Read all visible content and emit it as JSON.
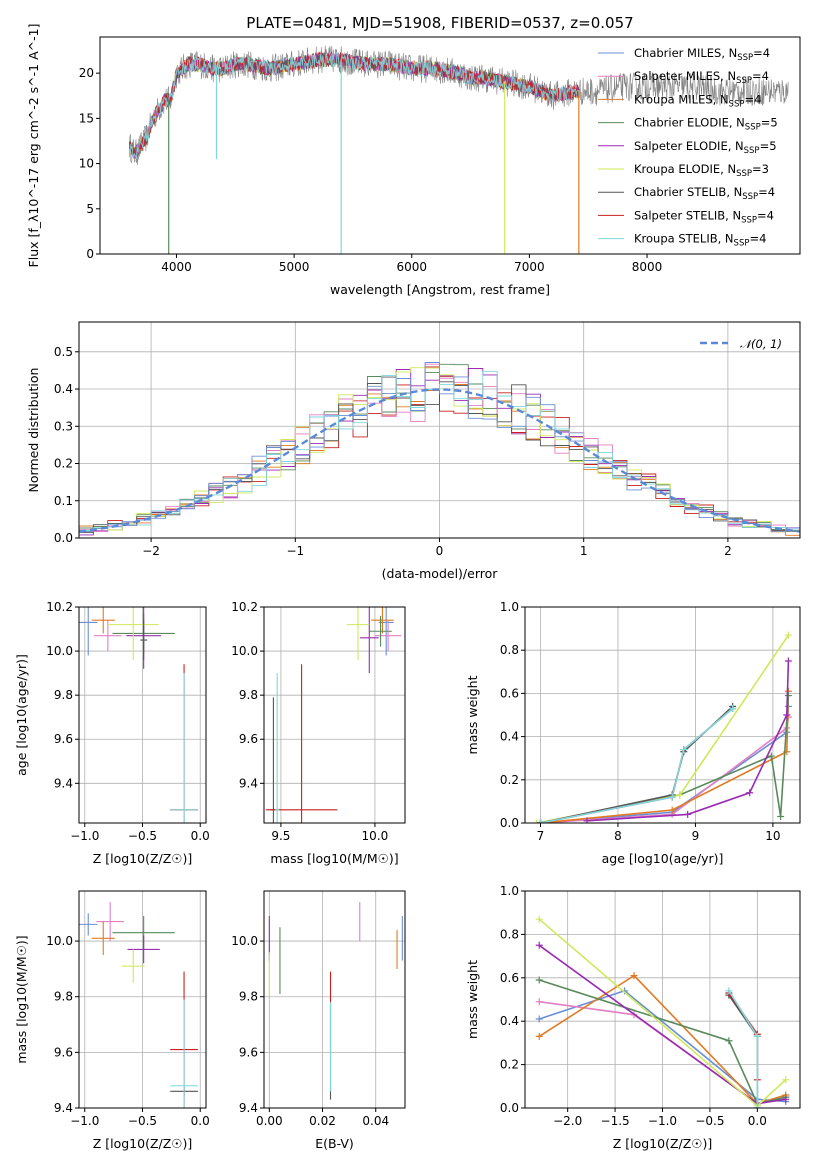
{
  "colors": {
    "series": [
      "#6b8fd6",
      "#e37fc3",
      "#e07b24",
      "#5a8a5c",
      "#9a2bb2",
      "#cfe85a",
      "#555555",
      "#c8201e",
      "#7fd7dc"
    ],
    "gray": "#808080",
    "gauss": "#5a8ad6"
  },
  "chart_data": [
    {
      "type": "line",
      "title": "PLATE=0481, MJD=51908, FIBERID=0537, z=0.057",
      "xlabel": "wavelength [Angstrom, rest frame]",
      "ylabel": "Flux [f_λ10^-17 erg cm^-2 s^-1 A^-1]",
      "xlim": [
        3350,
        9300
      ],
      "ylim": [
        0,
        24
      ],
      "xticks": [
        "4000",
        "5000",
        "6000",
        "7000",
        "8000"
      ],
      "yticks": [
        "0",
        "5",
        "10",
        "15",
        "20"
      ],
      "xtick_values": [
        4000,
        5000,
        6000,
        7000,
        8000
      ],
      "ytick_values": [
        0,
        5,
        10,
        15,
        20
      ],
      "grid": false,
      "legend_position": "top-right",
      "spectrum_envelope": {
        "x": [
          3600,
          3650,
          3700,
          3750,
          3800,
          3850,
          3900,
          3950,
          4000,
          4100,
          4200,
          4300,
          4400,
          4500,
          4600,
          4800,
          5000,
          5200,
          5400,
          5600,
          5800,
          6000,
          6200,
          6400,
          6500,
          6600,
          6800,
          7000,
          7200,
          7400,
          7600,
          7800,
          8000,
          8200,
          8400,
          8600,
          8800,
          9000,
          9200
        ],
        "y": [
          12,
          11,
          12,
          13,
          15,
          16,
          17,
          17,
          20,
          21,
          21,
          20.5,
          20.5,
          21,
          21,
          20.5,
          21,
          21.5,
          21.5,
          21,
          21,
          20.5,
          20.5,
          20,
          19.5,
          19.5,
          19,
          18.5,
          17.5,
          18,
          18,
          18.5,
          18.5,
          18.5,
          18.5,
          18,
          18,
          18,
          18
        ]
      },
      "spikes": [
        {
          "x": 3934,
          "y": 0
        },
        {
          "x": 5400,
          "y": 0
        },
        {
          "x": 6790,
          "y": 0
        },
        {
          "x": 7420,
          "y": 0
        },
        {
          "x": 4340,
          "y": 10.5
        }
      ],
      "legend": [
        {
          "name": "Chabrier MILES, N",
          "sub": "SSP",
          "n": "=4"
        },
        {
          "name": "Salpeter MILES, N",
          "sub": "SSP",
          "n": "=4"
        },
        {
          "name": "Kroupa MILES, N",
          "sub": "SSP",
          "n": "=4"
        },
        {
          "name": "Chabrier ELODIE, N",
          "sub": "SSP",
          "n": "=5"
        },
        {
          "name": "Salpeter ELODIE, N",
          "sub": "SSP",
          "n": "=5"
        },
        {
          "name": "Kroupa ELODIE, N",
          "sub": "SSP",
          "n": "=3"
        },
        {
          "name": "Chabrier STELIB, N",
          "sub": "SSP",
          "n": "=4"
        },
        {
          "name": "Salpeter STELIB, N",
          "sub": "SSP",
          "n": "=4"
        },
        {
          "name": "Kroupa STELIB, N",
          "sub": "SSP",
          "n": "=4"
        }
      ]
    },
    {
      "type": "histogram",
      "xlabel": "(data-model)/error",
      "ylabel": "Normed distribution",
      "xlim": [
        -2.5,
        2.5
      ],
      "ylim": [
        0,
        0.58
      ],
      "xticks": [
        "−2",
        "−1",
        "0",
        "1",
        "2"
      ],
      "yticks": [
        "0.0",
        "0.1",
        "0.2",
        "0.3",
        "0.4",
        "0.5"
      ],
      "xtick_values": [
        -2,
        -1,
        0,
        1,
        2
      ],
      "ytick_values": [
        0,
        0.1,
        0.2,
        0.3,
        0.4,
        0.5
      ],
      "grid": true,
      "legend_position": "top-right",
      "gaussian_label": "𝒩(0, 1)",
      "bin_width": 0.1
    },
    {
      "type": "scatter",
      "xlabel": "Z [log10(Z/Z☉)]",
      "ylabel": "age [log10(age/yr)]",
      "xlim": [
        -1.05,
        0.05
      ],
      "ylim": [
        9.22,
        10.2
      ],
      "xticks": [
        "−1.0",
        "−0.5",
        "0.0"
      ],
      "yticks": [
        "9.4",
        "9.6",
        "9.8",
        "10.0",
        "10.2"
      ],
      "xtick_values": [
        -1.0,
        -0.5,
        0.0
      ],
      "ytick_values": [
        9.4,
        9.6,
        9.8,
        10.0,
        10.2
      ],
      "grid": true,
      "points": [
        {
          "x": -0.97,
          "y": 10.13,
          "xerr": 0.08,
          "yerr": 0.15,
          "c": 0
        },
        {
          "x": -0.8,
          "y": 10.07,
          "xerr": 0.12,
          "yerr": 0.07,
          "c": 1
        },
        {
          "x": -0.84,
          "y": 10.14,
          "xerr": 0.1,
          "yerr": 0.06,
          "c": 2
        },
        {
          "x": -0.49,
          "y": 10.08,
          "xerr": 0.27,
          "yerr": 0.09,
          "c": 3
        },
        {
          "x": -0.49,
          "y": 10.07,
          "xerr": 0.15,
          "yerr": 0.15,
          "c": 4
        },
        {
          "x": -0.58,
          "y": 10.12,
          "xerr": 0.22,
          "yerr": 0.16,
          "c": 5
        },
        {
          "x": -0.49,
          "y": 10.05,
          "xerr": 0.03,
          "yerr": 0.09,
          "c": 6
        },
        {
          "x": -0.14,
          "y": 9.28,
          "xerr": 0.12,
          "yerr": 0.66,
          "c": 7
        },
        {
          "x": -0.14,
          "y": 9.28,
          "xerr": 0.12,
          "yerr": 0.62,
          "c": 8
        }
      ]
    },
    {
      "type": "scatter",
      "xlabel": "mass [log10(M/M☉)]",
      "ylabel": "",
      "xlim": [
        9.41,
        10.16
      ],
      "ylim": [
        9.22,
        10.2
      ],
      "xticks": [
        "9.5",
        "10.0"
      ],
      "yticks": [
        "9.4",
        "9.6",
        "9.8",
        "10.0",
        "10.2"
      ],
      "xtick_values": [
        9.5,
        10.0
      ],
      "ytick_values": [
        9.4,
        9.6,
        9.8,
        10.0,
        10.2
      ],
      "grid": true,
      "points": [
        {
          "x": 10.06,
          "y": 10.13,
          "xerr": 0.04,
          "yerr": 0.15,
          "c": 0
        },
        {
          "x": 10.07,
          "y": 10.07,
          "xerr": 0.07,
          "yerr": 0.07,
          "c": 1
        },
        {
          "x": 10.04,
          "y": 10.14,
          "xerr": 0.06,
          "yerr": 0.06,
          "c": 2
        },
        {
          "x": 10.03,
          "y": 10.09,
          "xerr": 0.06,
          "yerr": 0.07,
          "c": 3
        },
        {
          "x": 9.97,
          "y": 10.06,
          "xerr": 0.05,
          "yerr": 0.16,
          "c": 4
        },
        {
          "x": 9.91,
          "y": 10.12,
          "xerr": 0.06,
          "yerr": 0.16,
          "c": 5
        },
        {
          "x": 9.46,
          "y": 9.28,
          "xerr": 0.02,
          "yerr": 0.51,
          "c": 6
        },
        {
          "x": 9.61,
          "y": 9.28,
          "xerr": 0.19,
          "yerr": 0.66,
          "c": 7
        },
        {
          "x": 9.48,
          "y": 9.28,
          "xerr": 0.01,
          "yerr": 0.62,
          "c": 8
        }
      ]
    },
    {
      "type": "line",
      "xlabel": "age [log10(age/yr)]",
      "ylabel": "mass weight",
      "xlim": [
        6.8,
        10.35
      ],
      "ylim": [
        0,
        1
      ],
      "xticks": [
        "7",
        "8",
        "9",
        "10"
      ],
      "yticks": [
        "0.0",
        "0.2",
        "0.4",
        "0.6",
        "0.8",
        "1.0"
      ],
      "xtick_values": [
        7,
        8,
        9,
        10
      ],
      "ytick_values": [
        0,
        0.2,
        0.4,
        0.6,
        0.8,
        1.0
      ],
      "grid": true,
      "series": [
        {
          "c": 0,
          "x": [
            7.0,
            8.7,
            10.18,
            10.2
          ],
          "y": [
            0.0,
            0.05,
            0.42,
            0.54
          ]
        },
        {
          "c": 1,
          "x": [
            7.0,
            8.7,
            10.18,
            10.2
          ],
          "y": [
            0.0,
            0.04,
            0.44,
            0.49
          ]
        },
        {
          "c": 2,
          "x": [
            7.0,
            8.7,
            10.18,
            10.2
          ],
          "y": [
            0.0,
            0.06,
            0.33,
            0.61
          ]
        },
        {
          "c": 3,
          "x": [
            7.0,
            8.8,
            9.98,
            10.1,
            10.2
          ],
          "y": [
            0.0,
            0.13,
            0.31,
            0.03,
            0.59
          ]
        },
        {
          "c": 4,
          "x": [
            7.6,
            8.9,
            9.7,
            10.18,
            10.2
          ],
          "y": [
            0.01,
            0.04,
            0.14,
            0.5,
            0.75
          ]
        },
        {
          "c": 5,
          "x": [
            6.95,
            8.8,
            10.2
          ],
          "y": [
            0.0,
            0.13,
            0.87
          ]
        },
        {
          "c": 6,
          "x": [
            7.0,
            8.7,
            8.85,
            9.48
          ],
          "y": [
            0.0,
            0.13,
            0.33,
            0.54
          ]
        },
        {
          "c": 7,
          "x": [
            7.0,
            8.7,
            8.85,
            9.48
          ],
          "y": [
            0.0,
            0.12,
            0.34,
            0.53
          ]
        },
        {
          "c": 8,
          "x": [
            7.0,
            8.7,
            8.85,
            9.48
          ],
          "y": [
            0.0,
            0.12,
            0.34,
            0.53
          ]
        }
      ]
    },
    {
      "type": "scatter",
      "xlabel": "Z [log10(Z/Z☉)]",
      "ylabel": "mass [log10(M/M☉)]",
      "xlim": [
        -1.05,
        0.05
      ],
      "ylim": [
        9.4,
        10.18
      ],
      "xticks": [
        "−1.0",
        "−0.5",
        "0.0"
      ],
      "yticks": [
        "9.4",
        "9.6",
        "9.8",
        "10.0"
      ],
      "xtick_values": [
        -1.0,
        -0.5,
        0.0
      ],
      "ytick_values": [
        9.4,
        9.6,
        9.8,
        10.0
      ],
      "grid": true,
      "points": [
        {
          "x": -0.97,
          "y": 10.06,
          "xerr": 0.08,
          "yerr": 0.04,
          "c": 0
        },
        {
          "x": -0.78,
          "y": 10.07,
          "xerr": 0.12,
          "yerr": 0.07,
          "c": 1
        },
        {
          "x": -0.84,
          "y": 10.01,
          "xerr": 0.1,
          "yerr": 0.06,
          "c": 2
        },
        {
          "x": -0.49,
          "y": 10.03,
          "xerr": 0.27,
          "yerr": 0.06,
          "c": 3
        },
        {
          "x": -0.49,
          "y": 9.97,
          "xerr": 0.14,
          "yerr": 0.05,
          "c": 4
        },
        {
          "x": -0.58,
          "y": 9.91,
          "xerr": 0.1,
          "yerr": 0.06,
          "c": 5
        },
        {
          "x": -0.14,
          "y": 9.46,
          "xerr": 0.12,
          "yerr": 0.02,
          "c": 6
        },
        {
          "x": -0.14,
          "y": 9.61,
          "xerr": 0.12,
          "yerr": 0.28,
          "c": 7
        },
        {
          "x": -0.14,
          "y": 9.48,
          "xerr": 0.12,
          "yerr": 0.31,
          "c": 8
        }
      ]
    },
    {
      "type": "scatter",
      "xlabel": "E(B-V)",
      "ylabel": "",
      "xlim": [
        -0.002,
        0.051
      ],
      "ylim": [
        9.4,
        10.18
      ],
      "xticks": [
        "0.00",
        "0.02",
        "0.04"
      ],
      "yticks": [
        "9.4",
        "9.6",
        "9.8",
        "10.0"
      ],
      "xtick_values": [
        0.0,
        0.02,
        0.04
      ],
      "ytick_values": [
        9.4,
        9.6,
        9.8,
        10.0
      ],
      "grid": true,
      "points": [
        {
          "x": 0.05,
          "y": 10.01,
          "xerr": 0,
          "yerr": 0.08,
          "c": 0
        },
        {
          "x": 0.034,
          "y": 10.07,
          "xerr": 0,
          "yerr": 0.07,
          "c": 1
        },
        {
          "x": 0.048,
          "y": 9.97,
          "xerr": 0,
          "yerr": 0.07,
          "c": 2
        },
        {
          "x": 0.004,
          "y": 9.93,
          "xerr": 0,
          "yerr": 0.12,
          "c": 3
        },
        {
          "x": 0.0,
          "y": 10.01,
          "xerr": 0,
          "yerr": 0.08,
          "c": 4
        },
        {
          "x": 0.0,
          "y": 9.88,
          "xerr": 0,
          "yerr": 0.08,
          "c": 5
        },
        {
          "x": 0.023,
          "y": 9.6,
          "xerr": 0,
          "yerr": 0.17,
          "c": 6
        },
        {
          "x": 0.023,
          "y": 9.75,
          "xerr": 0,
          "yerr": 0.14,
          "c": 7
        },
        {
          "x": 0.023,
          "y": 9.62,
          "xerr": 0,
          "yerr": 0.16,
          "c": 8
        }
      ]
    },
    {
      "type": "line",
      "xlabel": "Z [log10(Z/Z☉)]",
      "ylabel": "mass weight",
      "xlim": [
        -2.45,
        0.45
      ],
      "ylim": [
        0,
        1
      ],
      "xticks": [
        "−2.0",
        "−1.5",
        "−1.0",
        "−0.5",
        "0.0"
      ],
      "yticks": [
        "0.0",
        "0.2",
        "0.4",
        "0.6",
        "0.8",
        "1.0"
      ],
      "xtick_values": [
        -2.0,
        -1.5,
        -1.0,
        -0.5,
        0.0
      ],
      "ytick_values": [
        0,
        0.2,
        0.4,
        0.6,
        0.8,
        1.0
      ],
      "grid": true,
      "series": [
        {
          "c": 0,
          "x": [
            -2.3,
            -1.4,
            0.0,
            0.3
          ],
          "y": [
            0.41,
            0.54,
            0.04,
            0.03
          ]
        },
        {
          "c": 1,
          "x": [
            -2.3,
            -1.3,
            0.0,
            0.3
          ],
          "y": [
            0.49,
            0.43,
            0.02,
            0.05
          ]
        },
        {
          "c": 2,
          "x": [
            -2.3,
            -1.3,
            0.0,
            0.3
          ],
          "y": [
            0.33,
            0.61,
            0.02,
            0.06
          ]
        },
        {
          "c": 3,
          "x": [
            -2.3,
            -0.3,
            0.0,
            0.3
          ],
          "y": [
            0.59,
            0.31,
            0.02,
            0.05
          ]
        },
        {
          "c": 4,
          "x": [
            -2.3,
            0.0,
            0.3
          ],
          "y": [
            0.75,
            0.02,
            0.04
          ]
        },
        {
          "c": 5,
          "x": [
            -2.3,
            0.0,
            0.3
          ],
          "y": [
            0.87,
            0.01,
            0.13
          ]
        },
        {
          "c": 6,
          "x": [
            -0.3,
            0.0,
            0.0
          ],
          "y": [
            0.52,
            0.33,
            0.0
          ]
        },
        {
          "c": 7,
          "x": [
            -0.3,
            0.0,
            0.0
          ],
          "y": [
            0.53,
            0.34,
            0.13
          ]
        },
        {
          "c": 8,
          "x": [
            -0.3,
            0.0,
            0.0
          ],
          "y": [
            0.54,
            0.33,
            0.0
          ]
        }
      ]
    }
  ]
}
